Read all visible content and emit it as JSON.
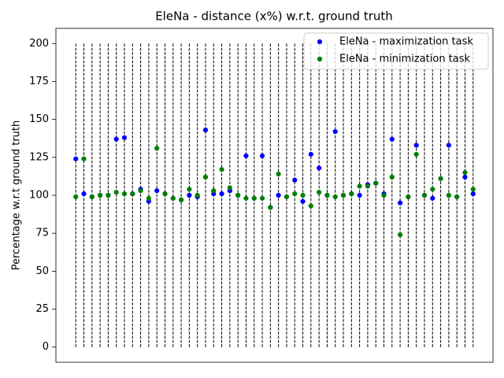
{
  "chart_data": {
    "type": "scatter",
    "title": "EleNa - distance (x%) w.r.t. ground truth",
    "y_label": "Percentage w.r.t ground truth",
    "x": [
      0,
      1,
      2,
      3,
      4,
      5,
      6,
      7,
      8,
      9,
      10,
      11,
      12,
      13,
      14,
      15,
      16,
      17,
      18,
      19,
      20,
      21,
      22,
      23,
      24,
      25,
      26,
      27,
      28,
      29,
      30,
      31,
      32,
      33,
      34,
      35,
      36,
      37,
      38,
      39,
      40,
      41,
      42,
      43,
      44,
      45,
      46,
      47,
      48,
      49
    ],
    "series": [
      {
        "name": "EleNa - maximization task",
        "color": "#0000ff",
        "values": [
          124,
          101,
          99,
          100,
          100,
          137,
          138,
          101,
          104,
          96,
          103,
          101,
          98,
          97,
          100,
          99,
          143,
          101,
          101,
          103,
          100,
          126,
          98,
          126,
          92,
          100,
          99,
          110,
          96,
          127,
          118,
          100,
          142,
          100,
          101,
          100,
          107,
          108,
          101,
          137,
          95,
          99,
          133,
          100,
          98,
          111,
          133,
          99,
          112,
          101
        ]
      },
      {
        "name": "EleNa - minimization task",
        "color": "#008000",
        "values": [
          99,
          124,
          99,
          100,
          100,
          102,
          101,
          101,
          103,
          98,
          131,
          101,
          98,
          97,
          104,
          100,
          112,
          103,
          117,
          105,
          100,
          98,
          98,
          98,
          92,
          114,
          99,
          101,
          100,
          93,
          102,
          100,
          99,
          100,
          101,
          106,
          106,
          108,
          100,
          112,
          74,
          99,
          127,
          100,
          104,
          111,
          100,
          99,
          115,
          104
        ]
      }
    ],
    "vlines": {
      "ymin": 0,
      "ymax": 200,
      "color": "#000000"
    },
    "xlim": [
      -2.45,
      51.45
    ],
    "ylim": [
      -10,
      210
    ],
    "yticks": [
      0,
      25,
      50,
      75,
      100,
      125,
      150,
      175,
      200
    ],
    "legend": "upper right"
  }
}
